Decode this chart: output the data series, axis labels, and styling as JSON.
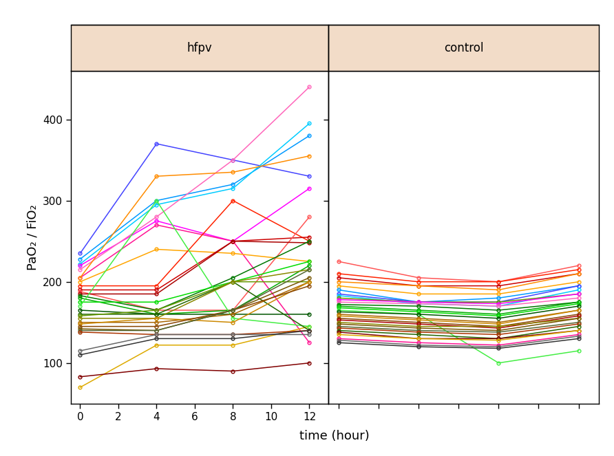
{
  "title_hfpv": "hfpv",
  "title_control": "control",
  "xlabel": "time (hour)",
  "ylabel": "PaO₂ / FiO₂",
  "ylim": [
    50,
    460
  ],
  "yticks": [
    100,
    200,
    300,
    400
  ],
  "xticks": [
    0,
    2,
    4,
    6,
    8,
    10,
    12
  ],
  "xlim": [
    -0.5,
    13
  ],
  "header_color": "#f2dcc8",
  "background_color": "#ffffff",
  "hfpv_series": [
    {
      "color": "#4444FF",
      "data": [
        [
          0,
          235
        ],
        [
          4,
          370
        ],
        [
          8,
          350
        ],
        [
          12,
          330
        ]
      ]
    },
    {
      "color": "#0099FF",
      "data": [
        [
          0,
          228
        ],
        [
          4,
          300
        ],
        [
          8,
          320
        ],
        [
          12,
          380
        ]
      ]
    },
    {
      "color": "#00CCFF",
      "data": [
        [
          0,
          222
        ],
        [
          4,
          295
        ],
        [
          8,
          315
        ],
        [
          12,
          395
        ]
      ]
    },
    {
      "color": "#FF00FF",
      "data": [
        [
          0,
          220
        ],
        [
          4,
          275
        ],
        [
          8,
          250
        ],
        [
          12,
          315
        ]
      ]
    },
    {
      "color": "#FF66BB",
      "data": [
        [
          0,
          215
        ],
        [
          4,
          280
        ],
        [
          8,
          350
        ],
        [
          12,
          440
        ]
      ]
    },
    {
      "color": "#FF1493",
      "data": [
        [
          0,
          205
        ],
        [
          4,
          270
        ],
        [
          8,
          250
        ],
        [
          12,
          125
        ]
      ]
    },
    {
      "color": "#FF8C00",
      "data": [
        [
          0,
          205
        ],
        [
          4,
          330
        ],
        [
          8,
          335
        ],
        [
          12,
          355
        ]
      ]
    },
    {
      "color": "#FFA500",
      "data": [
        [
          0,
          200
        ],
        [
          4,
          240
        ],
        [
          8,
          235
        ],
        [
          12,
          225
        ]
      ]
    },
    {
      "color": "#DDAA00",
      "data": [
        [
          0,
          70
        ],
        [
          4,
          122
        ],
        [
          8,
          122
        ],
        [
          12,
          145
        ]
      ]
    },
    {
      "color": "#FF2200",
      "data": [
        [
          0,
          195
        ],
        [
          4,
          195
        ],
        [
          8,
          300
        ],
        [
          12,
          250
        ]
      ]
    },
    {
      "color": "#CC0000",
      "data": [
        [
          0,
          190
        ],
        [
          4,
          190
        ],
        [
          8,
          250
        ],
        [
          12,
          255
        ]
      ]
    },
    {
      "color": "#FF5555",
      "data": [
        [
          0,
          188
        ],
        [
          4,
          165
        ],
        [
          8,
          165
        ],
        [
          12,
          280
        ]
      ]
    },
    {
      "color": "#AA0000",
      "data": [
        [
          0,
          185
        ],
        [
          4,
          185
        ],
        [
          8,
          250
        ],
        [
          12,
          248
        ]
      ]
    },
    {
      "color": "#007700",
      "data": [
        [
          0,
          183
        ],
        [
          4,
          165
        ],
        [
          8,
          205
        ],
        [
          12,
          250
        ]
      ]
    },
    {
      "color": "#00AA00",
      "data": [
        [
          0,
          180
        ],
        [
          4,
          160
        ],
        [
          8,
          165
        ],
        [
          12,
          220
        ]
      ]
    },
    {
      "color": "#00DD00",
      "data": [
        [
          0,
          175
        ],
        [
          4,
          175
        ],
        [
          8,
          200
        ],
        [
          12,
          225
        ]
      ]
    },
    {
      "color": "#44EE44",
      "data": [
        [
          0,
          170
        ],
        [
          4,
          300
        ],
        [
          8,
          155
        ],
        [
          12,
          145
        ]
      ]
    },
    {
      "color": "#005500",
      "data": [
        [
          0,
          165
        ],
        [
          4,
          160
        ],
        [
          8,
          160
        ],
        [
          12,
          160
        ]
      ]
    },
    {
      "color": "#226600",
      "data": [
        [
          0,
          160
        ],
        [
          4,
          160
        ],
        [
          8,
          200
        ],
        [
          12,
          140
        ]
      ]
    },
    {
      "color": "#669900",
      "data": [
        [
          0,
          158
        ],
        [
          4,
          165
        ],
        [
          8,
          200
        ],
        [
          12,
          200
        ]
      ]
    },
    {
      "color": "#888800",
      "data": [
        [
          0,
          155
        ],
        [
          4,
          155
        ],
        [
          8,
          200
        ],
        [
          12,
          215
        ]
      ]
    },
    {
      "color": "#AA6600",
      "data": [
        [
          0,
          150
        ],
        [
          4,
          150
        ],
        [
          8,
          160
        ],
        [
          12,
          200
        ]
      ]
    },
    {
      "color": "#CC8800",
      "data": [
        [
          0,
          148
        ],
        [
          4,
          155
        ],
        [
          8,
          150
        ],
        [
          12,
          200
        ]
      ]
    },
    {
      "color": "#884400",
      "data": [
        [
          0,
          145
        ],
        [
          4,
          145
        ],
        [
          8,
          165
        ],
        [
          12,
          195
        ]
      ]
    },
    {
      "color": "#775500",
      "data": [
        [
          0,
          142
        ],
        [
          4,
          140
        ],
        [
          8,
          165
        ],
        [
          12,
          205
        ]
      ]
    },
    {
      "color": "#556633",
      "data": [
        [
          0,
          140
        ],
        [
          4,
          140
        ],
        [
          8,
          165
        ],
        [
          12,
          215
        ]
      ]
    },
    {
      "color": "#AA3300",
      "data": [
        [
          0,
          138
        ],
        [
          4,
          135
        ],
        [
          8,
          135
        ],
        [
          12,
          140
        ]
      ]
    },
    {
      "color": "#800000",
      "data": [
        [
          0,
          83
        ],
        [
          4,
          93
        ],
        [
          8,
          90
        ],
        [
          12,
          100
        ]
      ]
    },
    {
      "color": "#666666",
      "data": [
        [
          0,
          115
        ],
        [
          4,
          135
        ],
        [
          8,
          135
        ],
        [
          12,
          135
        ]
      ]
    },
    {
      "color": "#333333",
      "data": [
        [
          0,
          110
        ],
        [
          4,
          130
        ],
        [
          8,
          130
        ],
        [
          12,
          140
        ]
      ]
    }
  ],
  "control_series": [
    {
      "color": "#FF5555",
      "data": [
        [
          0,
          225
        ],
        [
          4,
          205
        ],
        [
          8,
          200
        ],
        [
          12,
          220
        ]
      ]
    },
    {
      "color": "#FF2200",
      "data": [
        [
          0,
          210
        ],
        [
          4,
          200
        ],
        [
          8,
          200
        ],
        [
          12,
          215
        ]
      ]
    },
    {
      "color": "#CC0000",
      "data": [
        [
          0,
          205
        ],
        [
          4,
          195
        ],
        [
          8,
          195
        ],
        [
          12,
          210
        ]
      ]
    },
    {
      "color": "#FF8C00",
      "data": [
        [
          0,
          200
        ],
        [
          4,
          195
        ],
        [
          8,
          190
        ],
        [
          12,
          210
        ]
      ]
    },
    {
      "color": "#FFA500",
      "data": [
        [
          0,
          195
        ],
        [
          4,
          185
        ],
        [
          8,
          185
        ],
        [
          12,
          200
        ]
      ]
    },
    {
      "color": "#0099FF",
      "data": [
        [
          0,
          190
        ],
        [
          4,
          175
        ],
        [
          8,
          180
        ],
        [
          12,
          195
        ]
      ]
    },
    {
      "color": "#4444FF",
      "data": [
        [
          0,
          185
        ],
        [
          4,
          175
        ],
        [
          8,
          175
        ],
        [
          12,
          195
        ]
      ]
    },
    {
      "color": "#00CCFF",
      "data": [
        [
          0,
          183
        ],
        [
          4,
          173
        ],
        [
          8,
          170
        ],
        [
          12,
          190
        ]
      ]
    },
    {
      "color": "#669900",
      "data": [
        [
          0,
          180
        ],
        [
          4,
          175
        ],
        [
          8,
          175
        ],
        [
          12,
          185
        ]
      ]
    },
    {
      "color": "#FF00FF",
      "data": [
        [
          0,
          178
        ],
        [
          4,
          175
        ],
        [
          8,
          173
        ],
        [
          12,
          185
        ]
      ]
    },
    {
      "color": "#FF66BB",
      "data": [
        [
          0,
          175
        ],
        [
          4,
          173
        ],
        [
          8,
          170
        ],
        [
          12,
          180
        ]
      ]
    },
    {
      "color": "#007700",
      "data": [
        [
          0,
          172
        ],
        [
          4,
          170
        ],
        [
          8,
          165
        ],
        [
          12,
          175
        ]
      ]
    },
    {
      "color": "#00AA00",
      "data": [
        [
          0,
          170
        ],
        [
          4,
          165
        ],
        [
          8,
          160
        ],
        [
          12,
          175
        ]
      ]
    },
    {
      "color": "#00DD00",
      "data": [
        [
          0,
          168
        ],
        [
          4,
          163
        ],
        [
          8,
          158
        ],
        [
          12,
          173
        ]
      ]
    },
    {
      "color": "#44EE44",
      "data": [
        [
          0,
          165
        ],
        [
          4,
          160
        ],
        [
          8,
          100
        ],
        [
          12,
          115
        ]
      ]
    },
    {
      "color": "#005500",
      "data": [
        [
          0,
          163
        ],
        [
          4,
          160
        ],
        [
          8,
          155
        ],
        [
          12,
          170
        ]
      ]
    },
    {
      "color": "#AA6600",
      "data": [
        [
          0,
          160
        ],
        [
          4,
          155
        ],
        [
          8,
          150
        ],
        [
          12,
          165
        ]
      ]
    },
    {
      "color": "#CC8800",
      "data": [
        [
          0,
          158
        ],
        [
          4,
          153
        ],
        [
          8,
          148
        ],
        [
          12,
          165
        ]
      ]
    },
    {
      "color": "#884400",
      "data": [
        [
          0,
          155
        ],
        [
          4,
          150
        ],
        [
          8,
          145
        ],
        [
          12,
          160
        ]
      ]
    },
    {
      "color": "#AA0000",
      "data": [
        [
          0,
          153
        ],
        [
          4,
          148
        ],
        [
          8,
          143
        ],
        [
          12,
          158
        ]
      ]
    },
    {
      "color": "#888800",
      "data": [
        [
          0,
          150
        ],
        [
          4,
          145
        ],
        [
          8,
          145
        ],
        [
          12,
          155
        ]
      ]
    },
    {
      "color": "#775500",
      "data": [
        [
          0,
          148
        ],
        [
          4,
          143
        ],
        [
          8,
          140
        ],
        [
          12,
          155
        ]
      ]
    },
    {
      "color": "#556633",
      "data": [
        [
          0,
          145
        ],
        [
          4,
          140
        ],
        [
          8,
          138
        ],
        [
          12,
          150
        ]
      ]
    },
    {
      "color": "#AA3300",
      "data": [
        [
          0,
          143
        ],
        [
          4,
          138
        ],
        [
          8,
          135
        ],
        [
          12,
          148
        ]
      ]
    },
    {
      "color": "#226600",
      "data": [
        [
          0,
          140
        ],
        [
          4,
          135
        ],
        [
          8,
          130
        ],
        [
          12,
          145
        ]
      ]
    },
    {
      "color": "#800000",
      "data": [
        [
          0,
          138
        ],
        [
          4,
          130
        ],
        [
          8,
          130
        ],
        [
          12,
          140
        ]
      ]
    },
    {
      "color": "#DDAA00",
      "data": [
        [
          0,
          135
        ],
        [
          4,
          130
        ],
        [
          8,
          128
        ],
        [
          12,
          140
        ]
      ]
    },
    {
      "color": "#FF1493",
      "data": [
        [
          0,
          130
        ],
        [
          4,
          125
        ],
        [
          8,
          122
        ],
        [
          12,
          135
        ]
      ]
    },
    {
      "color": "#666666",
      "data": [
        [
          0,
          128
        ],
        [
          4,
          122
        ],
        [
          8,
          120
        ],
        [
          12,
          133
        ]
      ]
    },
    {
      "color": "#333333",
      "data": [
        [
          0,
          125
        ],
        [
          4,
          120
        ],
        [
          8,
          118
        ],
        [
          12,
          130
        ]
      ]
    }
  ]
}
